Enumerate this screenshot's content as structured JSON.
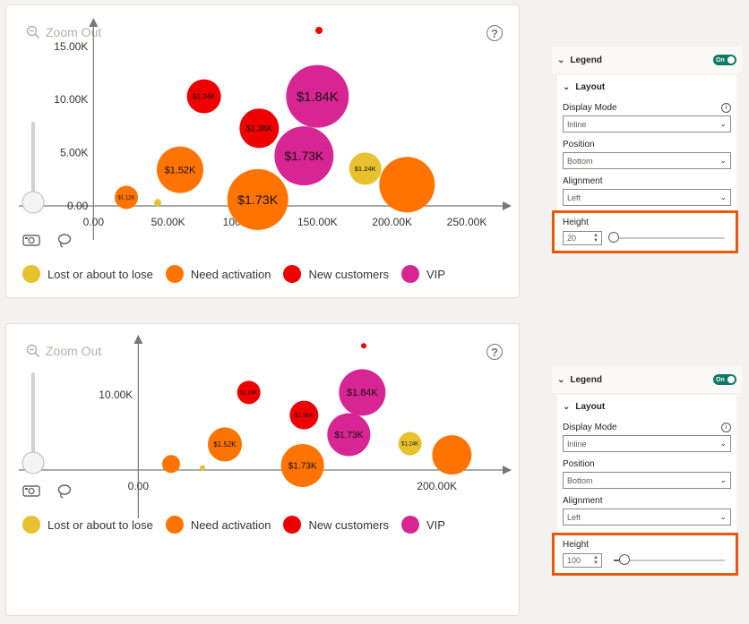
{
  "colors": {
    "lost": "#e8c12e",
    "activation": "#ff7300",
    "new": "#ee0000",
    "vip": "#d82594",
    "toggle": "#117865",
    "highlight": "#e8590c"
  },
  "toolbar": {
    "zoom_out_label": "Zoom Out",
    "help_glyph": "?"
  },
  "legend_entries": [
    {
      "label": "Lost or about to lose",
      "color": "#e8c12e"
    },
    {
      "label": "Need activation",
      "color": "#ff7300"
    },
    {
      "label": "New customers",
      "color": "#ee0000"
    },
    {
      "label": "VIP",
      "color": "#d82594"
    }
  ],
  "chart_data": [
    {
      "type": "scatter",
      "xlabel": "",
      "ylabel": "",
      "xlim": [
        -50000,
        280000
      ],
      "ylim": [
        -2500,
        17000
      ],
      "x_ticks": [
        "0.00",
        "50.00K",
        "100.00K",
        "150.00K",
        "200.00K",
        "250.00K"
      ],
      "x_tick_values": [
        0,
        50000,
        100000,
        150000,
        200000,
        250000
      ],
      "y_ticks": [
        "0.00",
        "5.00K",
        "10.00K",
        "15.00K"
      ],
      "y_tick_values": [
        0,
        5000,
        10000,
        15000
      ],
      "grid": false,
      "legend_position": "bottom",
      "points": [
        {
          "x": 22000,
          "y": 800,
          "r": 13,
          "color": "#ff7300",
          "label": "$1.12K"
        },
        {
          "x": 43000,
          "y": 300,
          "r": 4,
          "color": "#e8c12e",
          "label": ""
        },
        {
          "x": 58000,
          "y": 3400,
          "r": 26,
          "color": "#ff7300",
          "label": "$1.52K"
        },
        {
          "x": 74000,
          "y": 10300,
          "r": 19,
          "color": "#ee0000",
          "label": "$1.24K"
        },
        {
          "x": 111000,
          "y": 7300,
          "r": 22,
          "color": "#ee0000",
          "label": "$1.38K"
        },
        {
          "x": 110000,
          "y": 600,
          "r": 34,
          "color": "#ff7300",
          "label": "$1.73K"
        },
        {
          "x": 150000,
          "y": 10300,
          "r": 35,
          "color": "#d82594",
          "label": "$1.84K"
        },
        {
          "x": 141000,
          "y": 4700,
          "r": 33,
          "color": "#d82594",
          "label": "$1.73K"
        },
        {
          "x": 151000,
          "y": 16500,
          "r": 4,
          "color": "#ee0000",
          "label": ""
        },
        {
          "x": 182000,
          "y": 3500,
          "r": 18,
          "color": "#e8c12e",
          "label": "$1.24K"
        },
        {
          "x": 210000,
          "y": 2000,
          "r": 31,
          "color": "#ff7300",
          "label": ""
        }
      ]
    },
    {
      "type": "scatter",
      "xlabel": "",
      "ylabel": "",
      "xlim": [
        -80000,
        250000
      ],
      "ylim": [
        -4000,
        17000
      ],
      "x_ticks": [
        "0.00",
        "200.00K"
      ],
      "x_tick_values": [
        0,
        200000
      ],
      "y_ticks": [
        "10.00K"
      ],
      "y_tick_values": [
        10000
      ],
      "grid": false,
      "legend_position": "bottom",
      "points": [
        {
          "x": 22000,
          "y": 800,
          "r": 10,
          "color": "#ff7300",
          "label": ""
        },
        {
          "x": 43000,
          "y": 300,
          "r": 3,
          "color": "#e8c12e",
          "label": ""
        },
        {
          "x": 58000,
          "y": 3400,
          "r": 19,
          "color": "#ff7300",
          "label": "$1.52K"
        },
        {
          "x": 74000,
          "y": 10300,
          "r": 13,
          "color": "#ee0000",
          "label": "$1.24K"
        },
        {
          "x": 111000,
          "y": 7300,
          "r": 16,
          "color": "#ee0000",
          "label": "$1.38K"
        },
        {
          "x": 110000,
          "y": 600,
          "r": 24,
          "color": "#ff7300",
          "label": "$1.73K"
        },
        {
          "x": 150000,
          "y": 10300,
          "r": 26,
          "color": "#d82594",
          "label": "$1.84K"
        },
        {
          "x": 141000,
          "y": 4700,
          "r": 24,
          "color": "#d82594",
          "label": "$1.73K"
        },
        {
          "x": 151000,
          "y": 16500,
          "r": 3,
          "color": "#ee0000",
          "label": ""
        },
        {
          "x": 182000,
          "y": 3500,
          "r": 13,
          "color": "#e8c12e",
          "label": "$1.24K"
        },
        {
          "x": 210000,
          "y": 2000,
          "r": 22,
          "color": "#ff7300",
          "label": ""
        }
      ]
    }
  ],
  "format_panes": [
    {
      "legend_title": "Legend",
      "toggle_label": "On",
      "layout_title": "Layout",
      "display_mode_label": "Display Mode",
      "display_mode_value": "Inline",
      "position_label": "Position",
      "position_value": "Bottom",
      "alignment_label": "Alignment",
      "alignment_value": "Left",
      "height_label": "Height",
      "height_value": "20",
      "height_fraction": 0.0
    },
    {
      "legend_title": "Legend",
      "toggle_label": "On",
      "layout_title": "Layout",
      "display_mode_label": "Display Mode",
      "display_mode_value": "Inline",
      "position_label": "Position",
      "position_value": "Bottom",
      "alignment_label": "Alignment",
      "alignment_value": "Left",
      "height_label": "Height",
      "height_value": "100",
      "height_fraction": 0.1
    }
  ]
}
